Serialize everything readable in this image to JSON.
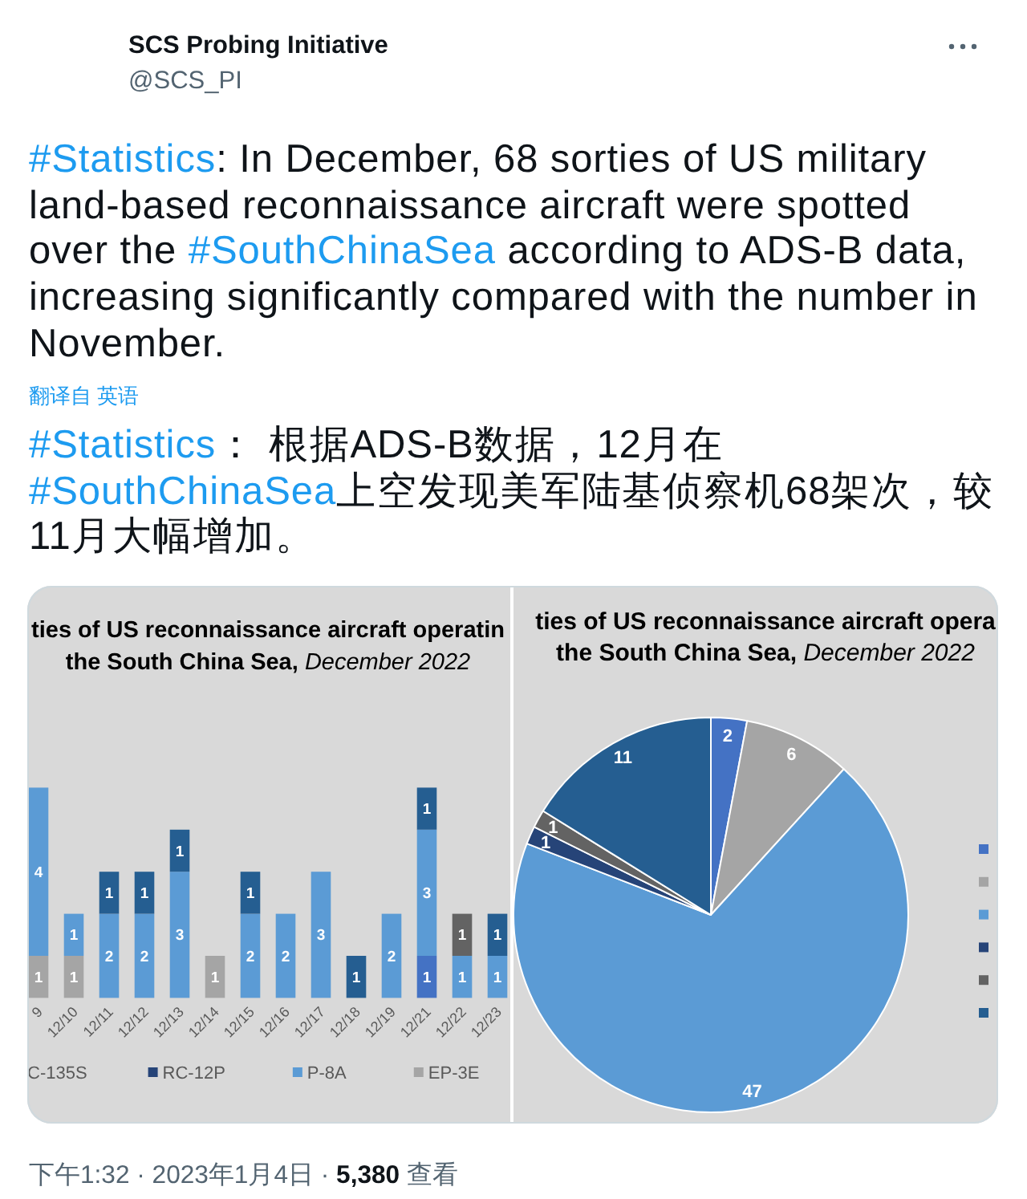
{
  "chart_data": [
    {
      "type": "other",
      "title": "SCS Probing Initiative",
      "subtitle": "@SCS_PI",
      "annotations": [
        "#Statistics: In December, 68 sorties of US military land-based reconnaissance aircraft were spotted over the #SouthChinaSea according to ADS-B data, increasing significantly compared with the number in November.",
        "翻译自 英语",
        "#Statistics： 根据ADS-B数据，12月在#SouthChinaSea上空发现美军陆基侦察机68架次，较11月大幅增加。"
      ]
    },
    {
      "type": "bar",
      "stacked": true,
      "title": "ties of US reconnaissance aircraft operatin\nthe South China Sea, *December 2022*",
      "categories": [
        "9",
        "12/10",
        "12/11",
        "12/12",
        "12/13",
        "12/14",
        "12/15",
        "12/16",
        "12/17",
        "12/18",
        "12/19",
        "12/21",
        "12/22",
        "12/23"
      ],
      "series": [
        {
          "color": "#4472c4",
          "values": [
            null,
            null,
            null,
            null,
            null,
            null,
            null,
            null,
            null,
            null,
            null,
            1,
            null,
            null
          ]
        },
        {
          "name": "EP-3E",
          "color": "#a5a5a5",
          "values": [
            1,
            1,
            null,
            null,
            null,
            1,
            null,
            null,
            null,
            null,
            null,
            null,
            null,
            null
          ]
        },
        {
          "name": "P-8A",
          "color": "#5b9bd5",
          "values": [
            4,
            1,
            2,
            2,
            3,
            null,
            2,
            2,
            3,
            null,
            2,
            3,
            1,
            1
          ]
        },
        {
          "name": "RC-12P",
          "color": "#264478",
          "values": [
            null,
            null,
            null,
            null,
            null,
            null,
            null,
            null,
            null,
            null,
            null,
            null,
            null,
            null
          ]
        },
        {
          "color": "#636363",
          "values": [
            null,
            null,
            null,
            null,
            null,
            null,
            null,
            null,
            null,
            null,
            null,
            null,
            1,
            null
          ]
        },
        {
          "color": "#255e91",
          "values": [
            null,
            null,
            1,
            1,
            1,
            null,
            1,
            null,
            null,
            1,
            null,
            1,
            null,
            1
          ]
        }
      ],
      "data_labels": true,
      "legend": "bottom",
      "annotations": [
        "C-135S"
      ]
    },
    {
      "type": "pie",
      "title": "ties of US reconnaissance aircraft opera\nthe South China Sea, *December 2022*",
      "categories": [
        null,
        null,
        null,
        null,
        null,
        null
      ],
      "values": [
        2,
        6,
        47,
        1,
        1,
        11
      ],
      "colors": [
        "#4472c4",
        "#a5a5a5",
        "#5b9bd5",
        "#264478",
        "#636363",
        "#255e91"
      ],
      "data_labels": true
    },
    {
      "type": "other",
      "annotations": [
        "下午1:32 · 2023年1月4日 · **5,380** 查看"
      ]
    }
  ]
}
